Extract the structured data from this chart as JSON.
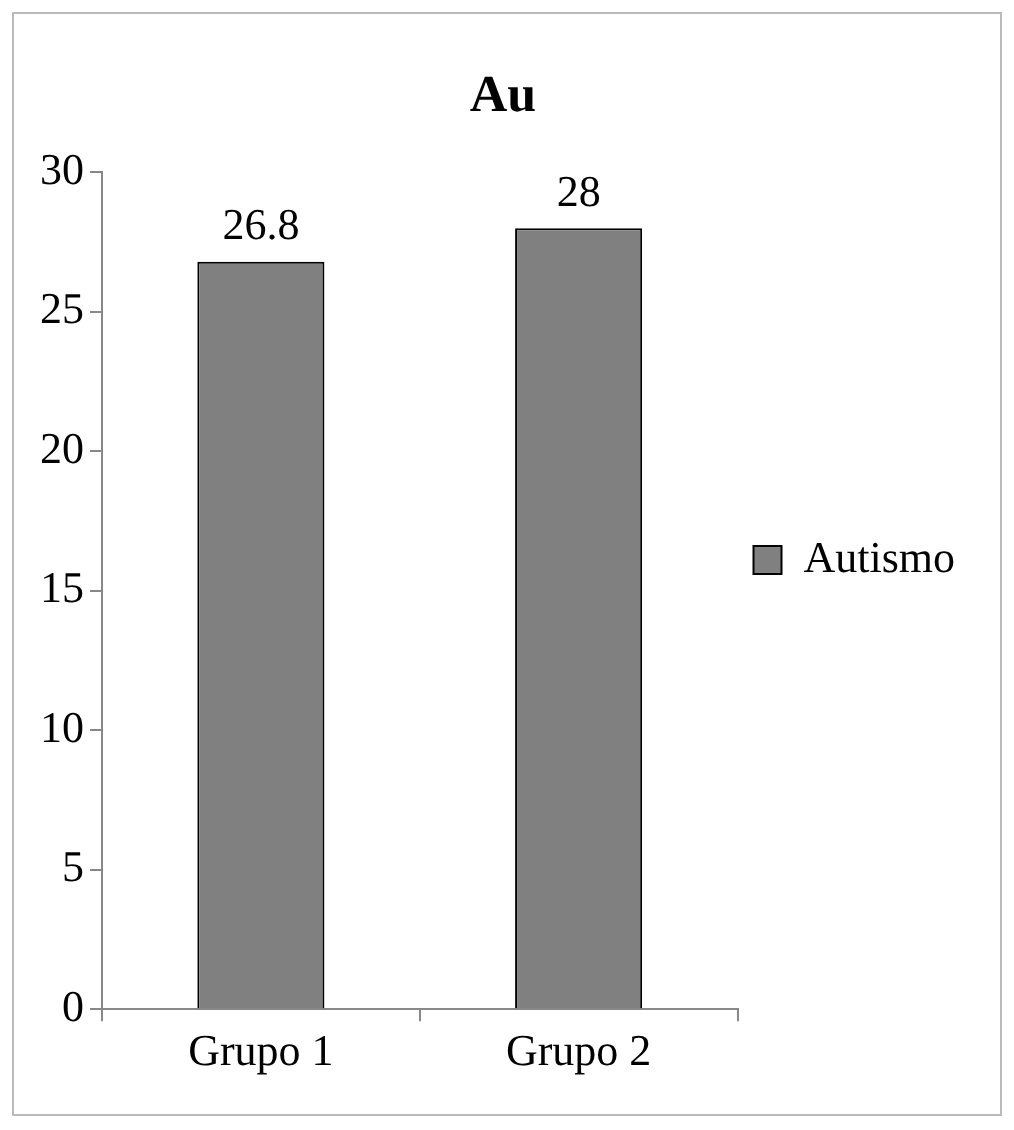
{
  "chart_data": {
    "type": "bar",
    "title": "Au",
    "categories": [
      "Grupo 1",
      "Grupo 2"
    ],
    "series": [
      {
        "name": "Autismo",
        "color": "#808080",
        "values": [
          26.8,
          28
        ]
      }
    ],
    "ylim": [
      0,
      30
    ],
    "yticks": [
      0,
      5,
      10,
      15,
      20,
      25,
      30
    ],
    "grid": false,
    "legend": "right",
    "data_labels": true
  }
}
